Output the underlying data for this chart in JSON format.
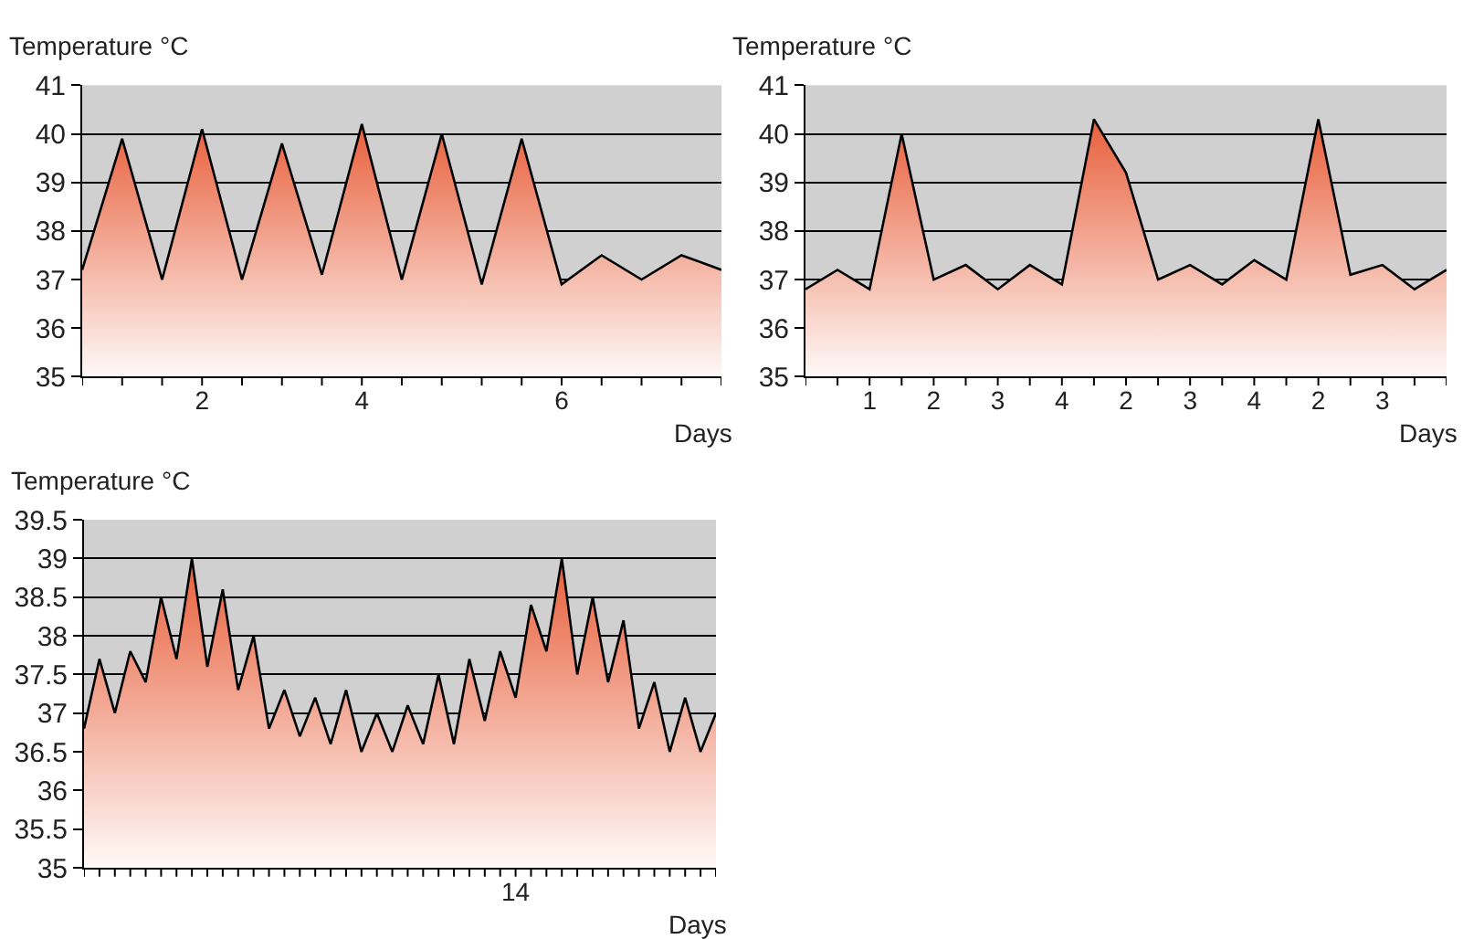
{
  "chart_data": [
    {
      "type": "area",
      "ylabel": "Temperature °C",
      "xlabel": "Days",
      "categories": [
        null,
        null,
        null,
        "2",
        null,
        null,
        null,
        "4",
        null,
        null,
        null,
        null,
        "6",
        null,
        null,
        null,
        null
      ],
      "series": [
        {
          "values": [
            37.2,
            39.9,
            37.0,
            40.1,
            37.0,
            39.8,
            37.1,
            40.2,
            37.0,
            40.0,
            36.9,
            39.9,
            36.9,
            37.5,
            37.0,
            37.5,
            37.2
          ]
        }
      ],
      "ylim": [
        35,
        41
      ],
      "yticks": [
        35,
        36,
        37,
        38,
        39,
        40,
        41
      ],
      "grid": "y"
    },
    {
      "type": "area",
      "ylabel": "Temperature °C",
      "xlabel": "Days",
      "categories": [
        null,
        null,
        "1",
        null,
        "2",
        null,
        "3",
        null,
        "4",
        null,
        "2",
        null,
        "3",
        null,
        "4",
        null,
        "2",
        null,
        "3",
        null,
        null
      ],
      "series": [
        {
          "values": [
            36.8,
            37.2,
            36.8,
            40.0,
            37.0,
            37.3,
            36.8,
            37.3,
            36.9,
            40.3,
            39.2,
            37.0,
            37.3,
            36.9,
            37.4,
            37.0,
            40.3,
            37.1,
            37.3,
            36.8,
            37.2
          ]
        }
      ],
      "ylim": [
        35,
        41
      ],
      "yticks": [
        35,
        36,
        37,
        38,
        39,
        40,
        41
      ],
      "grid": "y"
    },
    {
      "type": "area",
      "ylabel": "Temperature °C",
      "xlabel": "Days",
      "categories": [
        null,
        null,
        null,
        null,
        null,
        null,
        null,
        null,
        null,
        null,
        null,
        null,
        null,
        null,
        null,
        null,
        null,
        null,
        null,
        null,
        null,
        null,
        null,
        null,
        null,
        null,
        null,
        null,
        "14",
        null,
        null,
        null,
        null,
        null,
        null,
        null,
        null,
        null,
        null,
        null,
        null,
        null
      ],
      "series": [
        {
          "values": [
            36.8,
            37.7,
            37.0,
            37.8,
            37.4,
            38.5,
            37.7,
            39.0,
            37.6,
            38.6,
            37.3,
            38.0,
            36.8,
            37.3,
            36.7,
            37.2,
            36.6,
            37.3,
            36.5,
            37.0,
            36.5,
            37.1,
            36.6,
            37.5,
            36.6,
            37.7,
            36.9,
            37.8,
            37.2,
            38.4,
            37.8,
            39.0,
            37.5,
            38.5,
            37.4,
            38.2,
            36.8,
            37.4,
            36.5,
            37.2,
            36.5,
            37.0
          ]
        }
      ],
      "ylim": [
        35,
        39.5
      ],
      "yticks": [
        35,
        35.5,
        36,
        36.5,
        37,
        37.5,
        38,
        38.5,
        39,
        39.5
      ],
      "grid": "y"
    }
  ]
}
